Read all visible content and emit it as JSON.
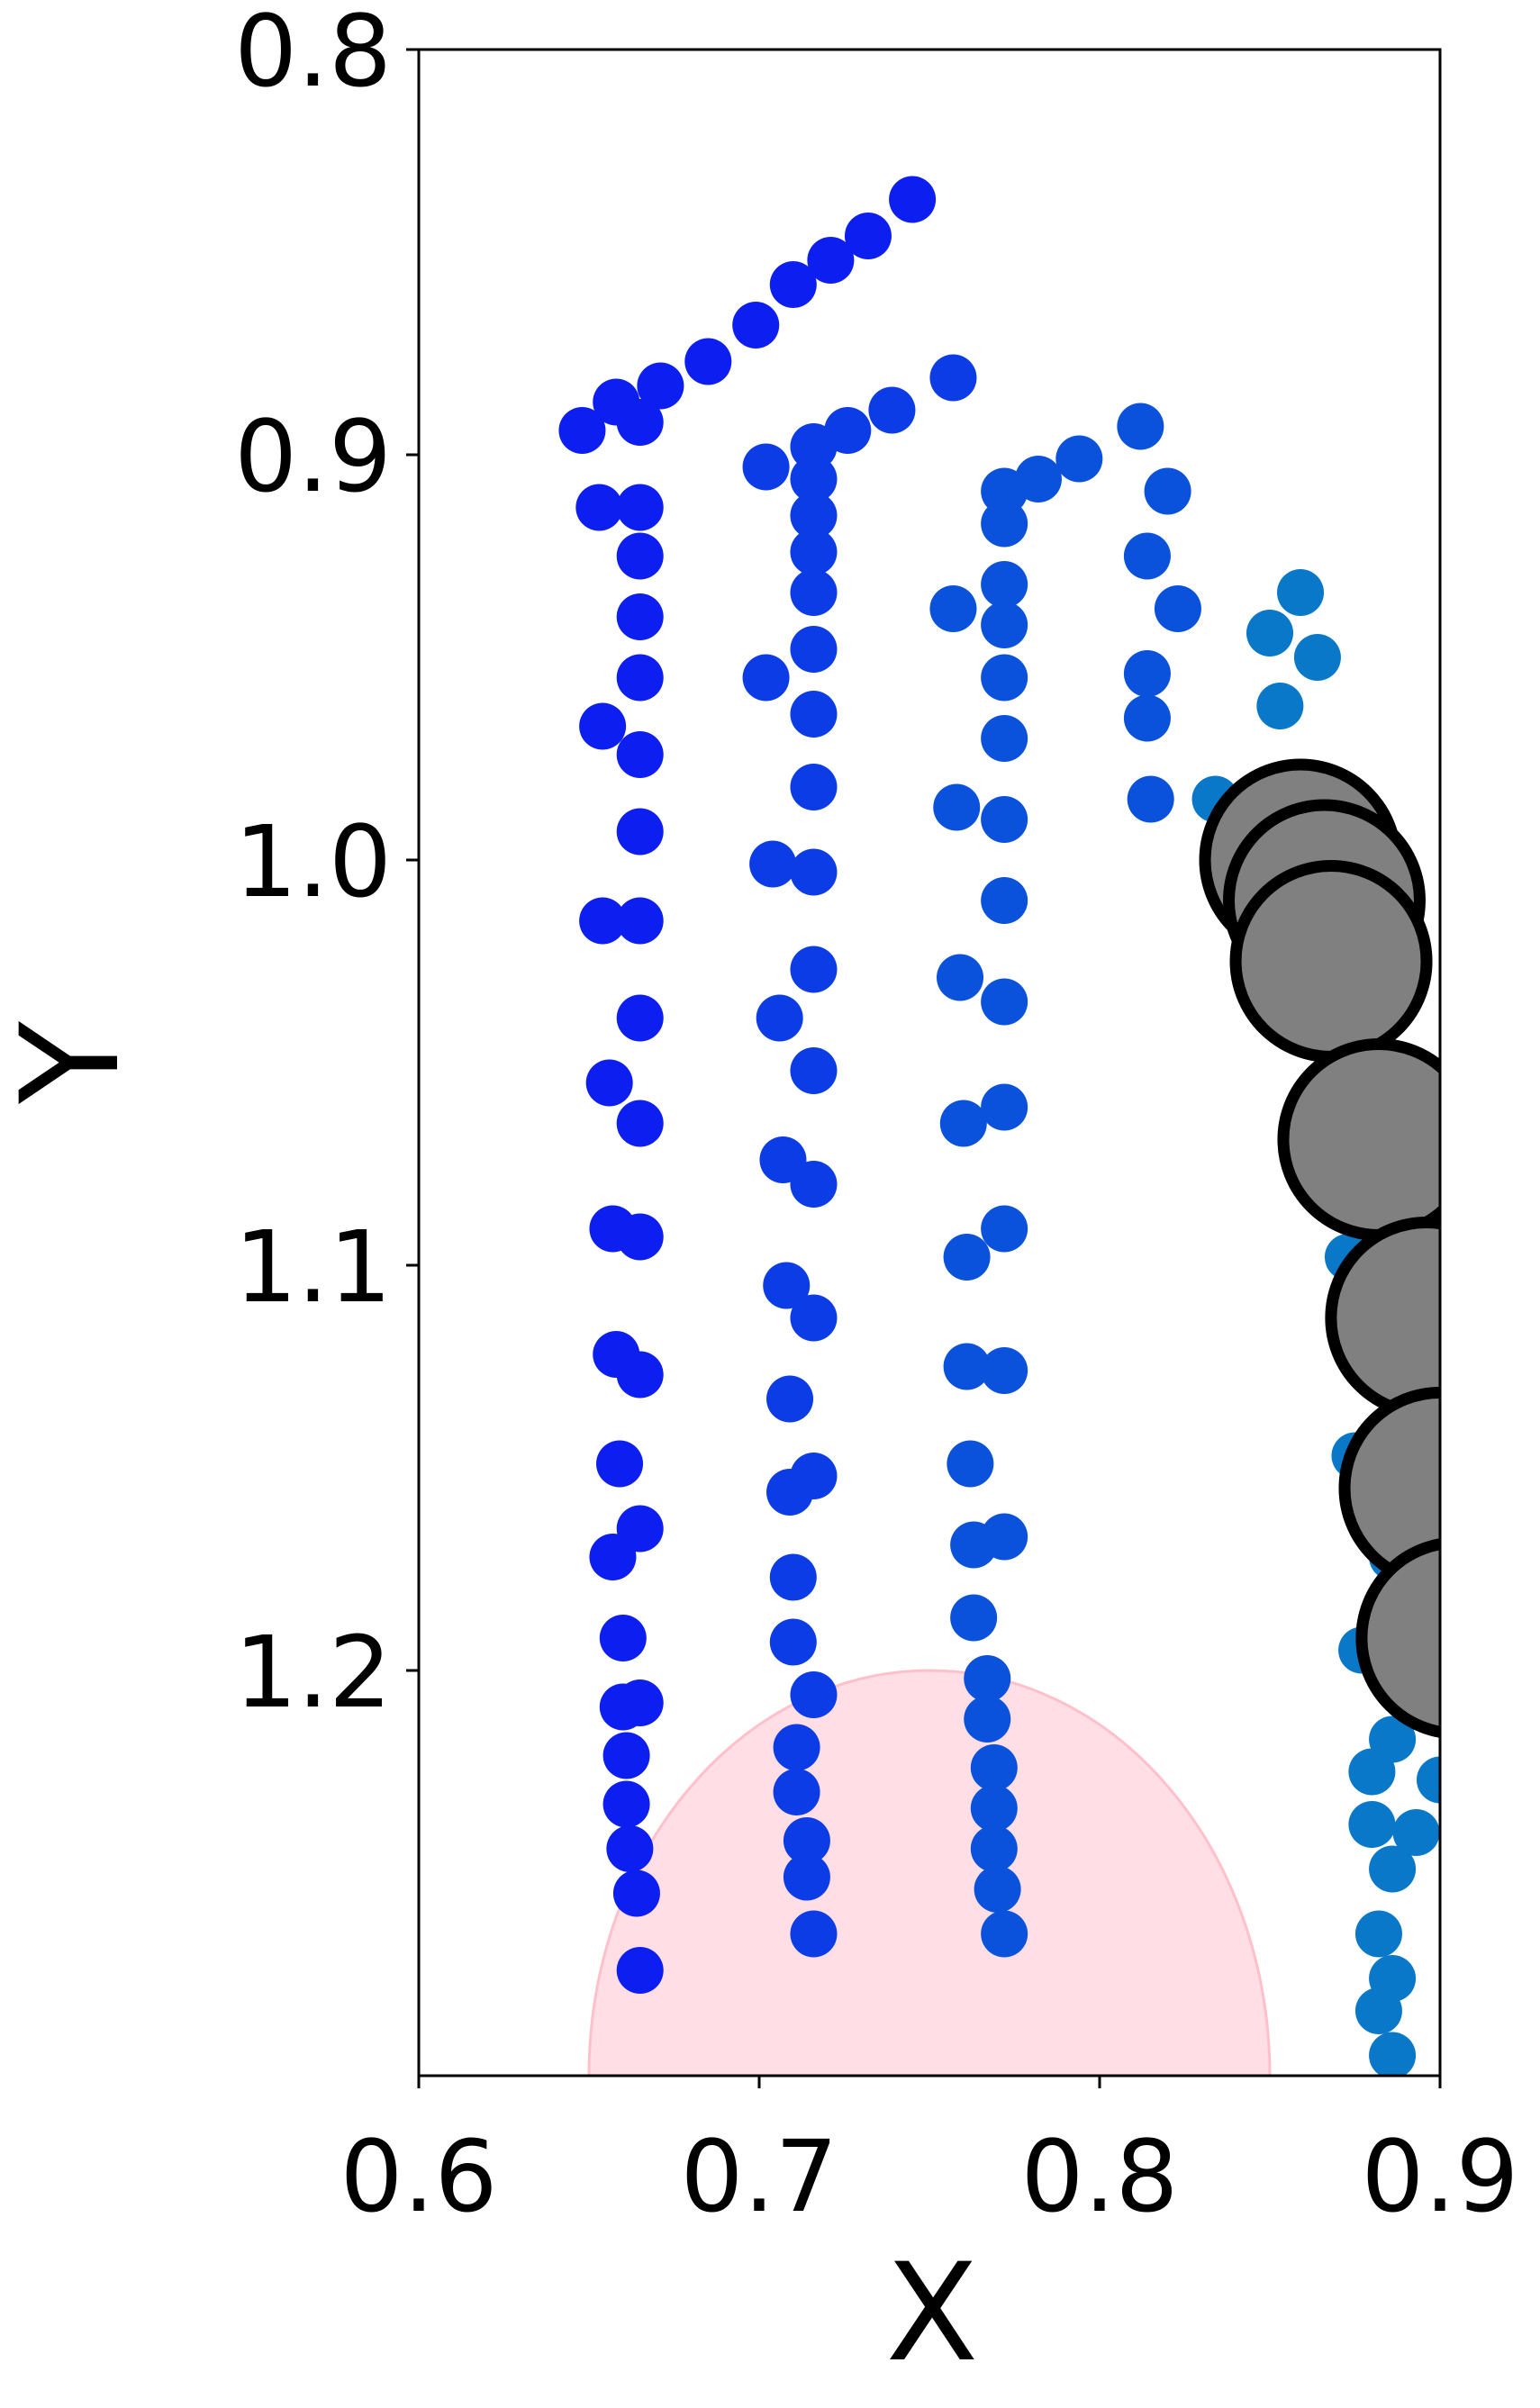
{
  "chart_data": {
    "type": "scatter",
    "xlabel": "X",
    "ylabel": "Y",
    "xlim": [
      0.6,
      0.9
    ],
    "ylim": [
      0.8,
      1.3
    ],
    "y_inverted": true,
    "xticks": [
      0.6,
      0.7,
      0.8,
      0.9
    ],
    "yticks": [
      0.8,
      0.9,
      {
        "value": 1,
        "label": "1.0"
      },
      1.1,
      1.2
    ],
    "patches": [
      {
        "center": [
          0.75,
          1.3
        ],
        "radius": 0.1,
        "color": "#ffc0cb"
      }
    ],
    "series": [
      {
        "color": "#0d1ef0",
        "marker": "small",
        "x": [
          0.648,
          0.658,
          0.671,
          0.685,
          0.699,
          0.71,
          0.721,
          0.732,
          0.745,
          0.653,
          0.665,
          0.665,
          0.665,
          0.665,
          0.665,
          0.654,
          0.665,
          0.665,
          0.654,
          0.665,
          0.665,
          0.656,
          0.665,
          0.657,
          0.665,
          0.658,
          0.665,
          0.659,
          0.665,
          0.657,
          0.66,
          0.66,
          0.665,
          0.661,
          0.661,
          0.662,
          0.664,
          0.665
        ],
        "values": [
          0.894,
          0.887,
          0.883,
          0.877,
          0.868,
          0.858,
          0.852,
          0.846,
          0.837,
          0.913,
          0.892,
          0.913,
          0.925,
          0.94,
          0.955,
          0.967,
          0.974,
          0.993,
          1.015,
          1.015,
          1.039,
          1.055,
          1.065,
          1.091,
          1.093,
          1.122,
          1.127,
          1.149,
          1.165,
          1.172,
          1.192,
          1.209,
          1.208,
          1.221,
          1.233,
          1.244,
          1.255,
          1.274
        ]
      },
      {
        "color": "#0b3ce6",
        "marker": "small",
        "x": [
          0.716,
          0.726,
          0.739,
          0.757,
          0.702,
          0.716,
          0.716,
          0.716,
          0.716,
          0.716,
          0.702,
          0.716,
          0.716,
          0.704,
          0.716,
          0.716,
          0.706,
          0.716,
          0.707,
          0.716,
          0.708,
          0.716,
          0.709,
          0.716,
          0.709,
          0.71,
          0.71,
          0.716,
          0.711,
          0.711,
          0.714,
          0.714,
          0.716
        ],
        "values": [
          0.898,
          0.894,
          0.889,
          0.881,
          0.903,
          0.906,
          0.915,
          0.924,
          0.934,
          0.948,
          0.955,
          0.964,
          0.982,
          1.001,
          1.003,
          1.027,
          1.039,
          1.052,
          1.074,
          1.08,
          1.105,
          1.113,
          1.133,
          1.152,
          1.156,
          1.177,
          1.193,
          1.206,
          1.219,
          1.23,
          1.242,
          1.251,
          1.265
        ]
      },
      {
        "color": "#0a52dc",
        "marker": "small",
        "x": [
          0.772,
          0.782,
          0.794,
          0.812,
          0.82,
          0.814,
          0.823,
          0.814,
          0.814,
          0.815,
          0.757,
          0.772,
          0.772,
          0.772,
          0.772,
          0.772,
          0.758,
          0.772,
          0.772,
          0.759,
          0.772,
          0.76,
          0.772,
          0.761,
          0.772,
          0.761,
          0.772,
          0.762,
          0.772,
          0.763,
          0.763,
          0.767,
          0.767,
          0.769,
          0.769,
          0.769,
          0.77,
          0.772
        ],
        "values": [
          0.909,
          0.906,
          0.901,
          0.893,
          0.909,
          0.925,
          0.938,
          0.954,
          0.965,
          0.985,
          0.938,
          0.917,
          0.932,
          0.942,
          0.955,
          0.97,
          0.987,
          0.99,
          1.01,
          1.029,
          1.035,
          1.065,
          1.061,
          1.098,
          1.091,
          1.125,
          1.126,
          1.149,
          1.167,
          1.169,
          1.187,
          1.202,
          1.212,
          1.224,
          1.234,
          1.244,
          1.254,
          1.265
        ]
      },
      {
        "color": "#0a78c8",
        "marker": "small",
        "x": [
          0.859,
          0.85,
          0.864,
          0.853,
          0.834,
          0.873,
          0.875,
          0.883,
          0.886,
          0.877,
          0.889,
          0.886,
          0.88,
          0.88,
          0.893,
          0.886,
          0.882,
          0.886,
          0.882,
          0.886,
          0.9
        ],
        "values": [
          0.934,
          0.944,
          0.95,
          0.962,
          0.985,
          1.098,
          1.147,
          1.162,
          1.172,
          1.195,
          1.197,
          1.217,
          1.225,
          1.238,
          1.24,
          1.249,
          1.265,
          1.276,
          1.284,
          1.295,
          1.227
        ]
      },
      {
        "color": "#808080",
        "marker": "large",
        "x": [
          0.859,
          0.866,
          0.868,
          0.882,
          0.896,
          0.9,
          0.905
        ],
        "values": [
          1.0,
          1.01,
          1.025,
          1.069,
          1.113,
          1.155,
          1.192
        ]
      }
    ]
  }
}
